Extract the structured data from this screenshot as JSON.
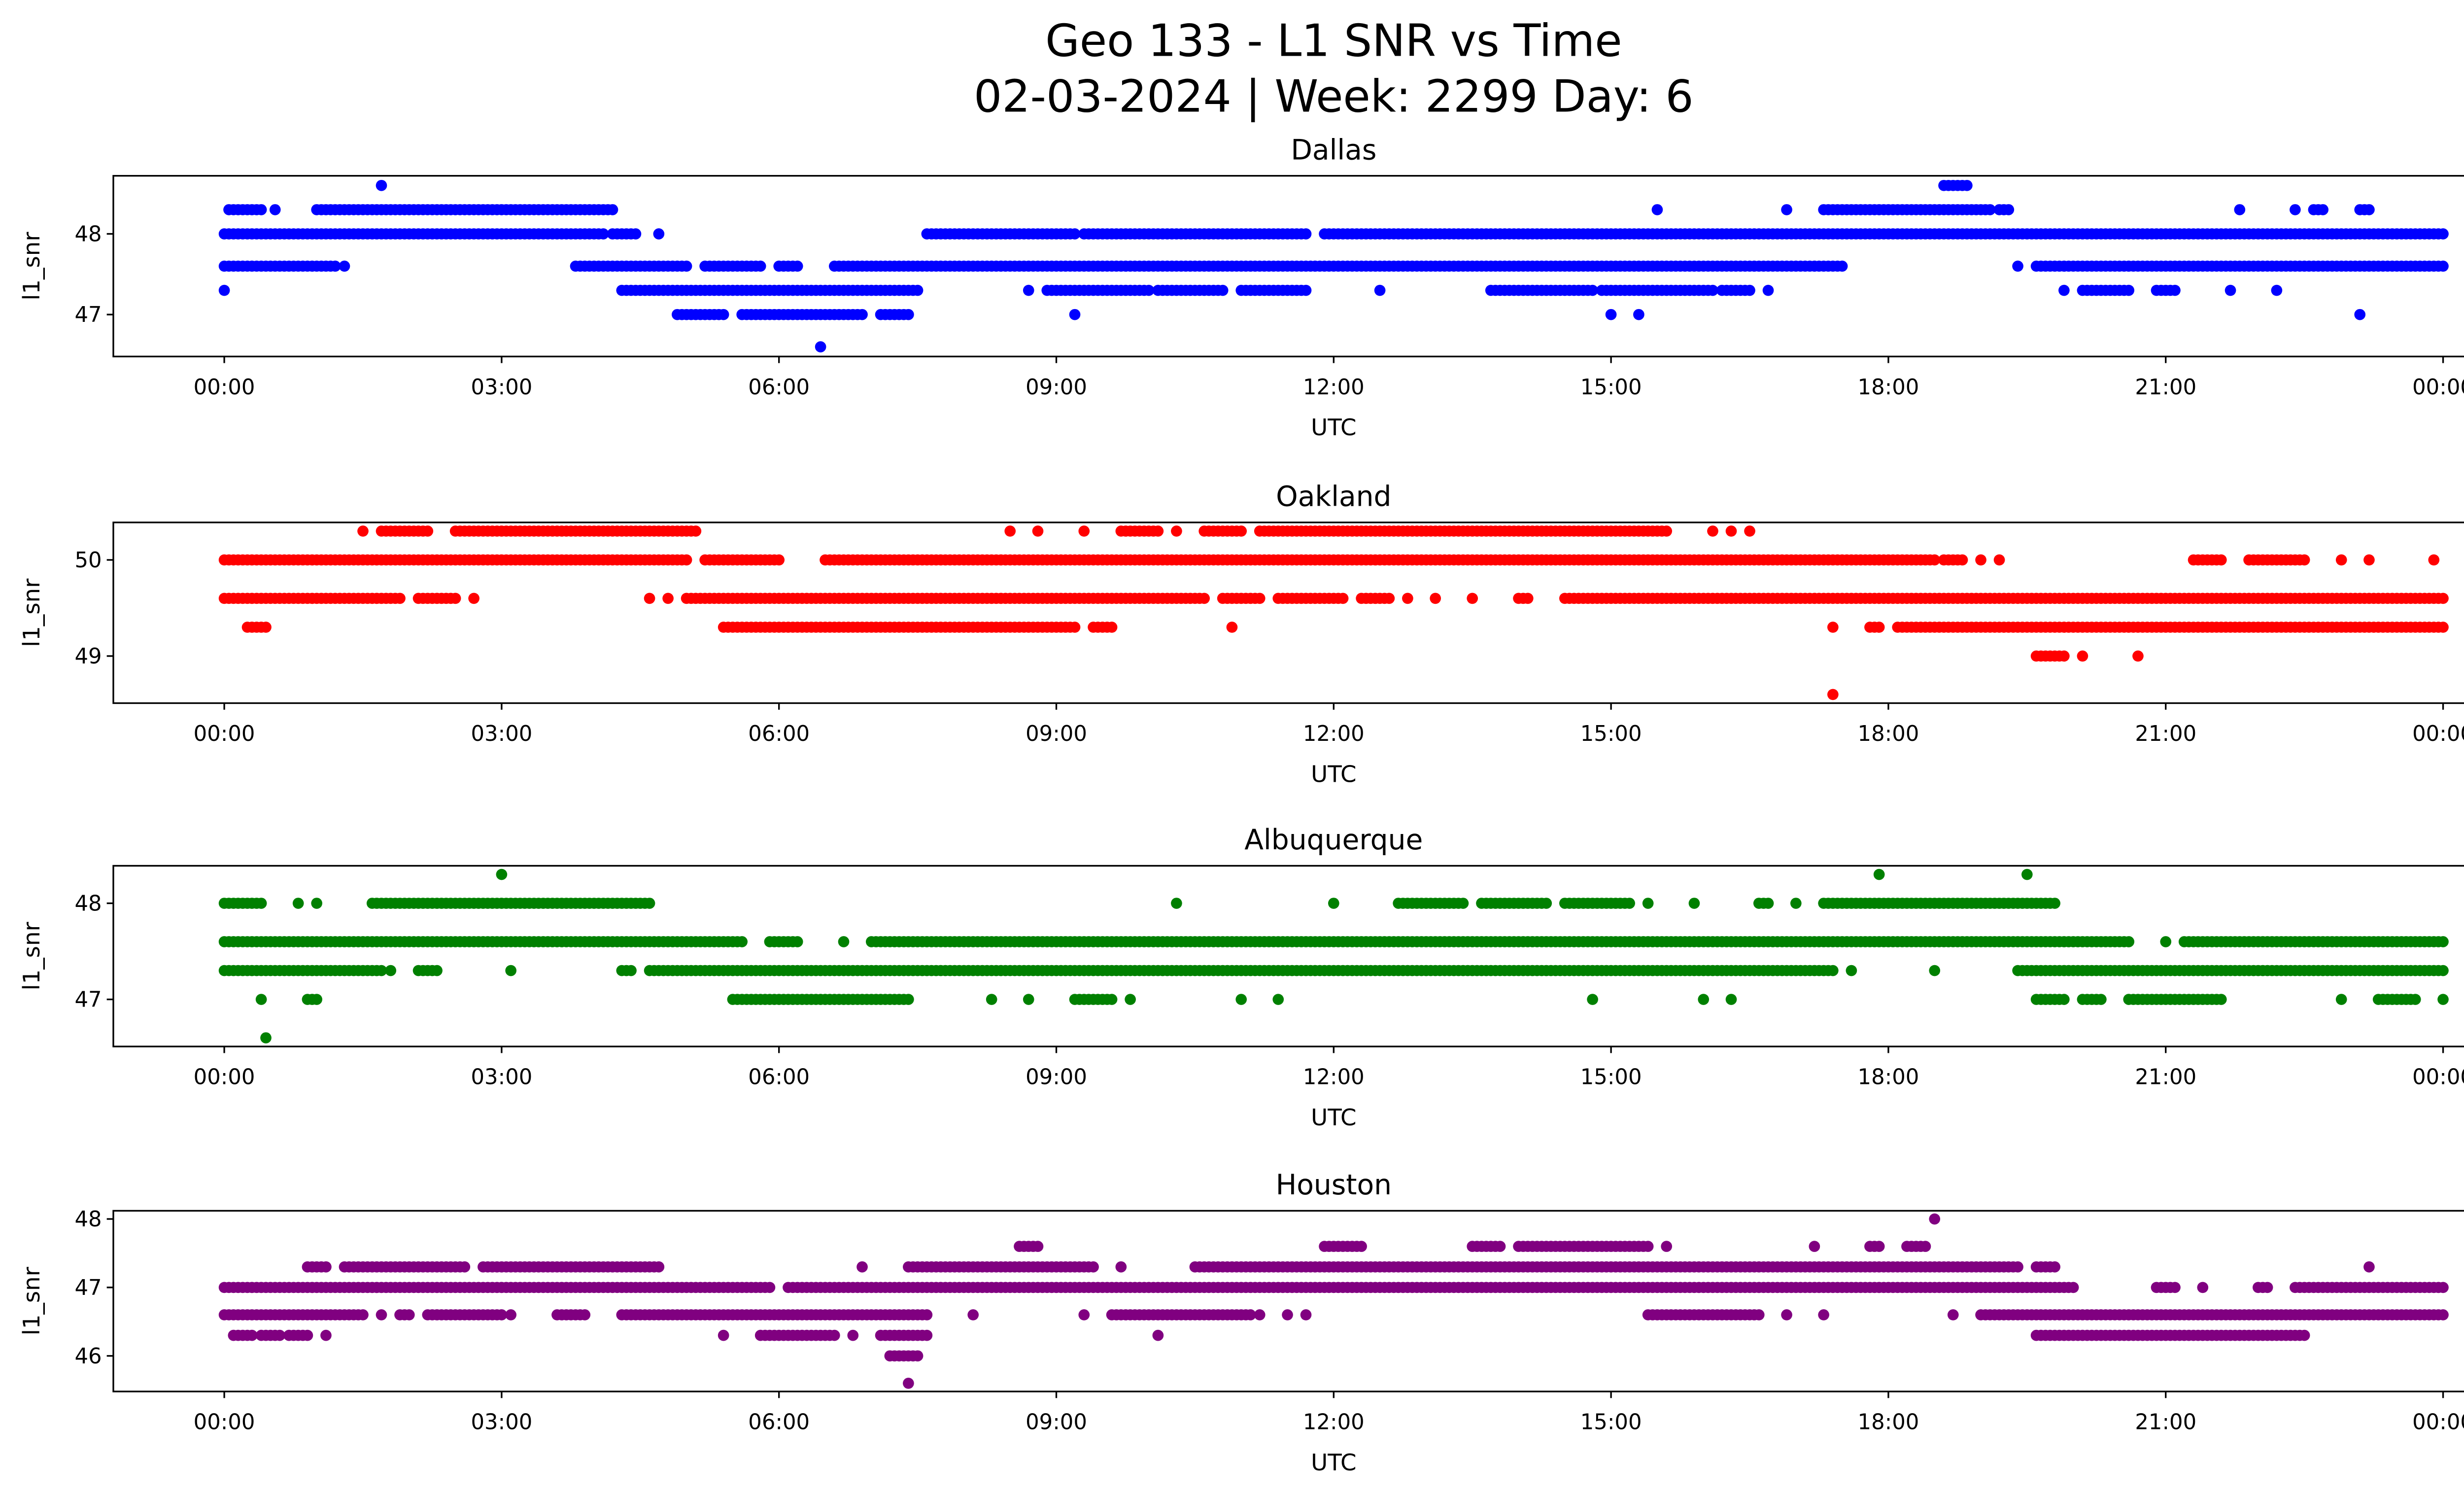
{
  "chart_data": {
    "type": "scatter",
    "title_line1": "Geo 133 - L1 SNR vs Time",
    "title_line2": "02-03-2024 | Week: 2299 Day: 6",
    "xlabel": "UTC",
    "ylabel": "l1_snr",
    "xlim_hours": [
      -1.2,
      25.2
    ],
    "xtick_hours": [
      0,
      3,
      6,
      9,
      12,
      15,
      18,
      21,
      24
    ],
    "xtick_labels": [
      "00:00",
      "03:00",
      "06:00",
      "09:00",
      "12:00",
      "15:00",
      "18:00",
      "21:00",
      "00:00"
    ],
    "point_spacing_hours": 0.05,
    "panels": [
      {
        "title": "Dallas",
        "color": "#0000ff",
        "ylim": [
          46.48,
          48.72
        ],
        "yticks": [
          47,
          48
        ],
        "ytick_labels": [
          "47",
          "48"
        ],
        "runs_format": "[snr, start_hour, end_hour]",
        "runs": [
          [
            48.6,
            1.7,
            1.7
          ],
          [
            48.6,
            18.6,
            18.85
          ],
          [
            48.3,
            0.05,
            0.4
          ],
          [
            48.3,
            0.55,
            0.55
          ],
          [
            48.3,
            1.0,
            4.2
          ],
          [
            48.3,
            15.5,
            15.5
          ],
          [
            48.3,
            16.9,
            16.9
          ],
          [
            48.3,
            17.3,
            19.1
          ],
          [
            48.3,
            19.2,
            19.3
          ],
          [
            48.3,
            21.8,
            21.8
          ],
          [
            48.3,
            22.4,
            22.4
          ],
          [
            48.3,
            22.6,
            22.7
          ],
          [
            48.3,
            23.1,
            23.2
          ],
          [
            48.0,
            0,
            4.1
          ],
          [
            48.0,
            4.2,
            4.45
          ],
          [
            48.0,
            4.7,
            4.7
          ],
          [
            48.0,
            7.6,
            9.2
          ],
          [
            48.0,
            9.3,
            11.7
          ],
          [
            48.0,
            11.9,
            24
          ],
          [
            47.6,
            0,
            1.2
          ],
          [
            47.6,
            1.3,
            1.3
          ],
          [
            47.6,
            3.8,
            5.0
          ],
          [
            47.6,
            5.2,
            5.8
          ],
          [
            47.6,
            6.0,
            6.2
          ],
          [
            47.6,
            6.6,
            17.5
          ],
          [
            47.6,
            19.4,
            19.4
          ],
          [
            47.6,
            19.6,
            24
          ],
          [
            47.3,
            0,
            0
          ],
          [
            47.3,
            4.3,
            7.5
          ],
          [
            47.3,
            8.7,
            8.7
          ],
          [
            47.3,
            8.9,
            10.0
          ],
          [
            47.3,
            10.1,
            10.8
          ],
          [
            47.3,
            11.0,
            11.7
          ],
          [
            47.3,
            12.5,
            12.5
          ],
          [
            47.3,
            13.7,
            14.8
          ],
          [
            47.3,
            14.9,
            16.1
          ],
          [
            47.3,
            16.2,
            16.5
          ],
          [
            47.3,
            16.7,
            16.7
          ],
          [
            47.3,
            19.9,
            19.9
          ],
          [
            47.3,
            20.1,
            20.6
          ],
          [
            47.3,
            20.9,
            21.1
          ],
          [
            47.3,
            21.7,
            21.7
          ],
          [
            47.3,
            22.2,
            22.2
          ],
          [
            47.0,
            4.9,
            5.4
          ],
          [
            47.0,
            5.6,
            6.9
          ],
          [
            47.0,
            7.1,
            7.4
          ],
          [
            47.0,
            9.2,
            9.2
          ],
          [
            47.0,
            15.0,
            15.0
          ],
          [
            47.0,
            15.3,
            15.3
          ],
          [
            47.0,
            23.1,
            23.1
          ],
          [
            46.6,
            6.45,
            6.45
          ]
        ]
      },
      {
        "title": "Oakland",
        "color": "#ff0000",
        "ylim": [
          48.51,
          50.39
        ],
        "yticks": [
          49,
          50
        ],
        "ytick_labels": [
          "49",
          "50"
        ],
        "runs_format": "[snr, start_hour, end_hour]",
        "runs": [
          [
            50.3,
            1.5,
            1.5
          ],
          [
            50.3,
            1.7,
            2.2
          ],
          [
            50.3,
            2.5,
            5.1
          ],
          [
            50.3,
            8.5,
            8.5
          ],
          [
            50.3,
            8.8,
            8.8
          ],
          [
            50.3,
            9.3,
            9.3
          ],
          [
            50.3,
            9.7,
            10.1
          ],
          [
            50.3,
            10.3,
            10.3
          ],
          [
            50.3,
            10.6,
            11.0
          ],
          [
            50.3,
            11.2,
            15.6
          ],
          [
            50.3,
            16.1,
            16.1
          ],
          [
            50.3,
            16.3,
            16.3
          ],
          [
            50.3,
            16.5,
            16.5
          ],
          [
            50.0,
            0,
            5.0
          ],
          [
            50.0,
            5.2,
            6.0
          ],
          [
            50.0,
            6.5,
            18.5
          ],
          [
            50.0,
            18.6,
            18.8
          ],
          [
            50.0,
            19.0,
            19.0
          ],
          [
            50.0,
            19.2,
            19.2
          ],
          [
            50.0,
            21.3,
            21.6
          ],
          [
            50.0,
            21.9,
            22.5
          ],
          [
            50.0,
            22.9,
            22.9
          ],
          [
            50.0,
            23.2,
            23.2
          ],
          [
            50.0,
            23.9,
            23.9
          ],
          [
            49.6,
            0,
            1.9
          ],
          [
            49.6,
            2.1,
            2.5
          ],
          [
            49.6,
            2.7,
            2.7
          ],
          [
            49.6,
            4.6,
            4.6
          ],
          [
            49.6,
            4.8,
            4.8
          ],
          [
            49.6,
            5.0,
            10.6
          ],
          [
            49.6,
            10.8,
            11.2
          ],
          [
            49.6,
            11.4,
            12.1
          ],
          [
            49.6,
            12.3,
            12.6
          ],
          [
            49.6,
            12.8,
            12.8
          ],
          [
            49.6,
            13.1,
            13.1
          ],
          [
            49.6,
            13.5,
            13.5
          ],
          [
            49.6,
            14.0,
            14.1
          ],
          [
            49.6,
            14.5,
            24
          ],
          [
            49.3,
            0.25,
            0.45
          ],
          [
            49.3,
            5.4,
            9.2
          ],
          [
            49.3,
            9.4,
            9.6
          ],
          [
            49.3,
            10.9,
            10.9
          ],
          [
            49.3,
            17.4,
            17.4
          ],
          [
            49.3,
            17.8,
            17.9
          ],
          [
            49.3,
            18.1,
            24
          ],
          [
            49.0,
            19.6,
            19.9
          ],
          [
            49.0,
            20.1,
            20.1
          ],
          [
            49.0,
            20.7,
            20.7
          ],
          [
            48.6,
            17.4,
            17.4
          ]
        ]
      },
      {
        "title": "Albuquerque",
        "color": "#008000",
        "ylim": [
          46.51,
          48.39
        ],
        "yticks": [
          47,
          48
        ],
        "ytick_labels": [
          "47",
          "48"
        ],
        "runs_format": "[snr, start_hour, end_hour]",
        "runs": [
          [
            48.3,
            3.0,
            3.0
          ],
          [
            48.3,
            17.9,
            17.9
          ],
          [
            48.3,
            19.5,
            19.5
          ],
          [
            48.0,
            0,
            0.4
          ],
          [
            48.0,
            0.8,
            0.8
          ],
          [
            48.0,
            1.0,
            1.0
          ],
          [
            48.0,
            1.6,
            4.6
          ],
          [
            48.0,
            10.3,
            10.3
          ],
          [
            48.0,
            12.0,
            12.0
          ],
          [
            48.0,
            12.7,
            13.4
          ],
          [
            48.0,
            13.6,
            14.3
          ],
          [
            48.0,
            14.5,
            15.2
          ],
          [
            48.0,
            15.4,
            15.4
          ],
          [
            48.0,
            15.9,
            15.9
          ],
          [
            48.0,
            16.6,
            16.7
          ],
          [
            48.0,
            17.0,
            17.0
          ],
          [
            48.0,
            17.3,
            19.8
          ],
          [
            47.6,
            0,
            5.6
          ],
          [
            47.6,
            5.9,
            6.2
          ],
          [
            47.6,
            6.7,
            6.7
          ],
          [
            47.6,
            7.0,
            20.6
          ],
          [
            47.6,
            21.0,
            21.0
          ],
          [
            47.6,
            21.2,
            24
          ],
          [
            47.3,
            0,
            1.7
          ],
          [
            47.3,
            1.8,
            1.8
          ],
          [
            47.3,
            2.1,
            2.3
          ],
          [
            47.3,
            3.1,
            3.1
          ],
          [
            47.3,
            4.3,
            4.4
          ],
          [
            47.3,
            4.6,
            17.4
          ],
          [
            47.3,
            17.6,
            17.6
          ],
          [
            47.3,
            18.5,
            18.5
          ],
          [
            47.3,
            19.4,
            24
          ],
          [
            47.0,
            0.4,
            0.4
          ],
          [
            47.0,
            0.9,
            1.0
          ],
          [
            47.0,
            5.5,
            7.4
          ],
          [
            47.0,
            8.3,
            8.3
          ],
          [
            47.0,
            8.7,
            8.7
          ],
          [
            47.0,
            9.2,
            9.6
          ],
          [
            47.0,
            9.8,
            9.8
          ],
          [
            47.0,
            11.0,
            11.0
          ],
          [
            47.0,
            11.4,
            11.4
          ],
          [
            47.0,
            14.8,
            14.8
          ],
          [
            47.0,
            16.0,
            16.0
          ],
          [
            47.0,
            16.3,
            16.3
          ],
          [
            47.0,
            19.6,
            19.9
          ],
          [
            47.0,
            20.1,
            20.3
          ],
          [
            47.0,
            20.6,
            21.6
          ],
          [
            47.0,
            22.9,
            22.9
          ],
          [
            47.0,
            23.3,
            23.7
          ],
          [
            47.0,
            24,
            24
          ],
          [
            46.6,
            0.45,
            0.45
          ]
        ]
      },
      {
        "title": "Houston",
        "color": "#800080",
        "ylim": [
          45.48,
          48.12
        ],
        "yticks": [
          46,
          47,
          48
        ],
        "ytick_labels": [
          "46",
          "47",
          "48"
        ],
        "runs_format": "[snr, start_hour, end_hour]",
        "runs": [
          [
            48.0,
            18.5,
            18.5
          ],
          [
            47.6,
            8.6,
            8.8
          ],
          [
            47.6,
            11.9,
            12.3
          ],
          [
            47.6,
            13.5,
            13.8
          ],
          [
            47.6,
            14.0,
            15.4
          ],
          [
            47.6,
            15.6,
            15.6
          ],
          [
            47.6,
            17.2,
            17.2
          ],
          [
            47.6,
            17.8,
            17.9
          ],
          [
            47.6,
            18.2,
            18.4
          ],
          [
            47.3,
            0.9,
            1.1
          ],
          [
            47.3,
            1.3,
            2.6
          ],
          [
            47.3,
            2.8,
            4.7
          ],
          [
            47.3,
            6.9,
            6.9
          ],
          [
            47.3,
            7.4,
            9.4
          ],
          [
            47.3,
            9.7,
            9.7
          ],
          [
            47.3,
            10.5,
            19.4
          ],
          [
            47.3,
            19.6,
            19.8
          ],
          [
            47.3,
            23.2,
            23.2
          ],
          [
            47.0,
            0,
            5.9
          ],
          [
            47.0,
            6.1,
            20.0
          ],
          [
            47.0,
            20.9,
            21.1
          ],
          [
            47.0,
            21.4,
            21.4
          ],
          [
            47.0,
            22.0,
            22.1
          ],
          [
            47.0,
            22.4,
            24
          ],
          [
            46.6,
            0,
            1.5
          ],
          [
            46.6,
            1.7,
            1.7
          ],
          [
            46.6,
            1.9,
            2.0
          ],
          [
            46.6,
            2.2,
            3.0
          ],
          [
            46.6,
            3.1,
            3.1
          ],
          [
            46.6,
            3.6,
            3.9
          ],
          [
            46.6,
            4.3,
            7.6
          ],
          [
            46.6,
            8.1,
            8.1
          ],
          [
            46.6,
            9.3,
            9.3
          ],
          [
            46.6,
            9.6,
            11.1
          ],
          [
            46.6,
            11.2,
            11.2
          ],
          [
            46.6,
            11.5,
            11.5
          ],
          [
            46.6,
            11.7,
            11.7
          ],
          [
            46.6,
            15.4,
            16.6
          ],
          [
            46.6,
            16.9,
            16.9
          ],
          [
            46.6,
            17.3,
            17.3
          ],
          [
            46.6,
            18.7,
            18.7
          ],
          [
            46.6,
            19.0,
            24
          ],
          [
            46.3,
            0.1,
            0.3
          ],
          [
            46.3,
            0.4,
            0.6
          ],
          [
            46.3,
            0.7,
            0.9
          ],
          [
            46.3,
            1.1,
            1.1
          ],
          [
            46.3,
            5.4,
            5.4
          ],
          [
            46.3,
            5.8,
            6.6
          ],
          [
            46.3,
            6.8,
            6.8
          ],
          [
            46.3,
            7.1,
            7.6
          ],
          [
            46.3,
            10.1,
            10.1
          ],
          [
            46.3,
            19.6,
            22.5
          ],
          [
            46.0,
            7.2,
            7.5
          ],
          [
            45.6,
            7.4,
            7.4
          ]
        ]
      }
    ]
  }
}
